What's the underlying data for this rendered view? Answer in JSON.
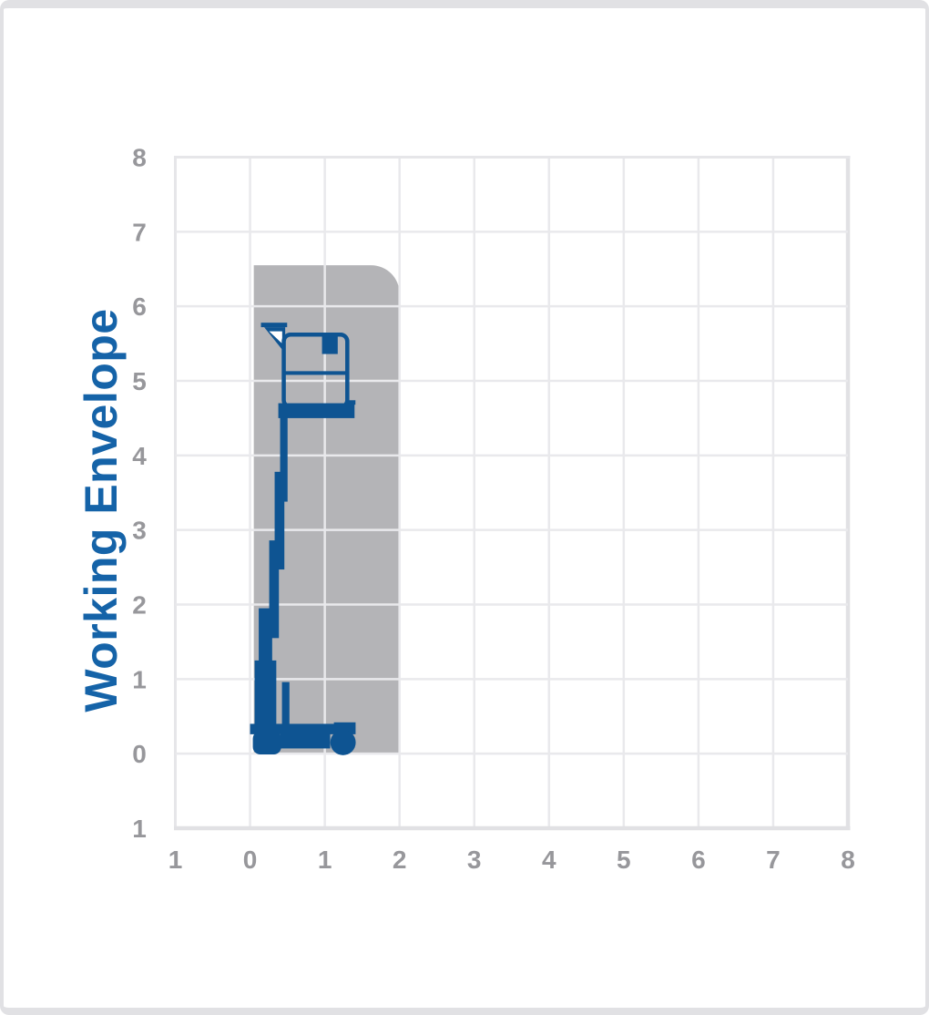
{
  "colors": {
    "machine_blue": "#0e5492",
    "title_blue": "#1563a8",
    "tick_gray": "#97979b",
    "envelope_gray": "#b4b4b7",
    "grid_line": "#e9e9ec",
    "frame_line_light": "#e6e6e9",
    "frame_line_dark": "#e1e1e4",
    "background": "#ffffff"
  },
  "chart_data": {
    "type": "area",
    "title": "Working Envelope",
    "xlabel": "",
    "ylabel": "",
    "grid": true,
    "legend": "none",
    "x_range": [
      -1,
      8
    ],
    "y_range": [
      -1,
      8
    ],
    "x_ticks": [
      "1",
      "0",
      "1",
      "2",
      "3",
      "4",
      "5",
      "6",
      "7",
      "8"
    ],
    "x_tick_values": [
      -1,
      0,
      1,
      2,
      3,
      4,
      5,
      6,
      7,
      8
    ],
    "y_ticks": [
      "8",
      "7",
      "6",
      "5",
      "4",
      "3",
      "2",
      "1",
      "0",
      "1"
    ],
    "y_tick_values": [
      8,
      7,
      6,
      5,
      4,
      3,
      2,
      1,
      0,
      -1
    ],
    "envelope": {
      "description": "Gray shaded reachable working envelope of the vertical mast lift",
      "x_min": 0.05,
      "x_max": 2.0,
      "y_min": 0.0,
      "y_max": 6.55,
      "top_right_corner_radius": 0.38
    },
    "machine": {
      "description": "Blue side-profile silhouette of a vertical mast lift with raised platform",
      "platform_height": 4.6,
      "envelope_top_height": 6.55,
      "parts": [
        {
          "name": "jib-bar",
          "type": "rect",
          "x": 0.146,
          "y": 5.78,
          "w": 0.35,
          "h": 0.06
        },
        {
          "name": "jib-truss",
          "type": "polygon",
          "points": [
            [
              0.189,
              5.72
            ],
            [
              0.47,
              5.72
            ],
            [
              0.47,
              5.369
            ]
          ]
        },
        {
          "name": "jib-truss-cutout-1",
          "type": "polygon",
          "fill": "#ffffff",
          "points": [
            [
              0.255,
              5.665
            ],
            [
              0.43,
              5.665
            ],
            [
              0.43,
              5.5
            ]
          ]
        },
        {
          "name": "jib-truss-cutout-2",
          "type": "polygon",
          "fill": "#ffffff",
          "points": [
            [
              0.425,
              5.47
            ],
            [
              0.458,
              5.47
            ],
            [
              0.458,
              5.4
            ]
          ]
        },
        {
          "name": "guardrail",
          "type": "rrect-outline",
          "x": 0.451,
          "y": 5.62,
          "w": 0.85,
          "h": 0.97,
          "stroke_w": 0.055,
          "r": 0.09
        },
        {
          "name": "mid-rail",
          "type": "rect",
          "x": 0.451,
          "y": 5.13,
          "w": 0.85,
          "h": 0.05
        },
        {
          "name": "control-box",
          "type": "rect",
          "x": 0.963,
          "y": 5.61,
          "w": 0.21,
          "h": 0.25
        },
        {
          "name": "platform-floor",
          "type": "rect",
          "x": 0.378,
          "y": 4.7,
          "w": 1.02,
          "h": 0.2
        },
        {
          "name": "floor-lip",
          "type": "rect",
          "x": 1.32,
          "y": 4.74,
          "w": 0.09,
          "h": 0.06
        },
        {
          "name": "mast-section-1",
          "type": "rect",
          "x": 0.402,
          "y": 4.52,
          "w": 0.1,
          "h": 1.14
        },
        {
          "name": "mast-section-2",
          "type": "rect",
          "x": 0.329,
          "y": 3.78,
          "w": 0.13,
          "h": 1.31
        },
        {
          "name": "mast-section-3",
          "type": "rect",
          "x": 0.256,
          "y": 2.86,
          "w": 0.13,
          "h": 1.31
        },
        {
          "name": "mast-section-4",
          "type": "rect",
          "x": 0.116,
          "y": 1.95,
          "w": 0.18,
          "h": 0.73
        },
        {
          "name": "mast-base",
          "type": "rect",
          "x": 0.061,
          "y": 1.25,
          "w": 0.29,
          "h": 0.88
        },
        {
          "name": "lift-post",
          "type": "rect",
          "x": 0.427,
          "y": 0.96,
          "w": 0.1,
          "h": 0.58
        },
        {
          "name": "chassis-deck",
          "type": "rect",
          "x": 0.0,
          "y": 0.4,
          "w": 1.38,
          "h": 0.14
        },
        {
          "name": "wheel-fender",
          "type": "rect",
          "x": 1.122,
          "y": 0.42,
          "w": 0.29,
          "h": 0.16
        },
        {
          "name": "left-wheel",
          "type": "rrect",
          "x": 0.037,
          "y": 0.3,
          "w": 0.38,
          "h": 0.31,
          "r": 0.1
        },
        {
          "name": "chassis-bottom",
          "type": "rect",
          "x": 0.402,
          "y": 0.27,
          "w": 0.67,
          "h": 0.2
        },
        {
          "name": "right-wheel",
          "type": "circle",
          "cx": 1.244,
          "cy": 0.15,
          "r": 0.17
        }
      ]
    }
  }
}
